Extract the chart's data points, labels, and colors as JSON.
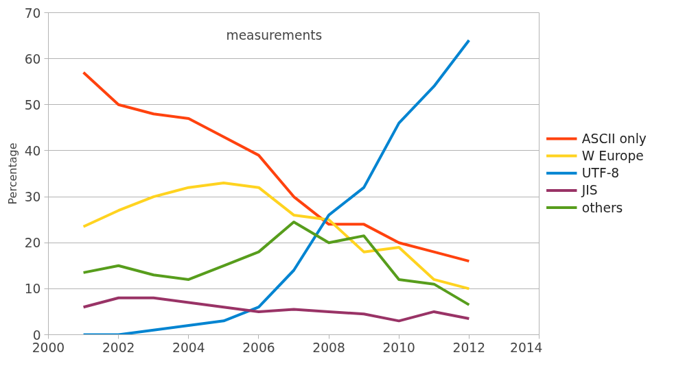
{
  "chart_data": {
    "type": "line",
    "ylabel": "Percentage",
    "annotations": [
      "measurements"
    ],
    "x": [
      2001,
      2002,
      2003,
      2004,
      2005,
      2006,
      2007,
      2008,
      2009,
      2010,
      2011,
      2012
    ],
    "xlim": [
      2000,
      2014
    ],
    "xticks": [
      2000,
      2002,
      2004,
      2006,
      2008,
      2010,
      2012,
      2014
    ],
    "ylim": [
      0,
      70
    ],
    "yticks": [
      0,
      10,
      20,
      30,
      40,
      50,
      60,
      70
    ],
    "grid": "y",
    "legend": "right",
    "marker": "none",
    "line_style": "solid",
    "series": [
      {
        "name": "ASCII only",
        "color": "#ff420e",
        "values": [
          57,
          50,
          48,
          47,
          43,
          39,
          30,
          24,
          24,
          20,
          18,
          16
        ]
      },
      {
        "name": "W Europe",
        "color": "#ffd320",
        "values": [
          23.5,
          27,
          30,
          32,
          33,
          32,
          26,
          25,
          18,
          19,
          12,
          10
        ]
      },
      {
        "name": "UTF-8",
        "color": "#0084d1",
        "values": [
          0,
          0,
          1,
          2,
          3,
          6,
          14,
          26,
          32,
          46,
          54,
          64
        ]
      },
      {
        "name": "JIS",
        "color": "#993366",
        "values": [
          6,
          8,
          8,
          7,
          6,
          5,
          5.5,
          5,
          4.5,
          3,
          5,
          3.5
        ]
      },
      {
        "name": "others",
        "color": "#579d1c",
        "values": [
          13.5,
          15,
          13,
          12,
          15,
          18,
          24.5,
          20,
          21.5,
          12,
          11,
          6.5
        ]
      }
    ]
  }
}
